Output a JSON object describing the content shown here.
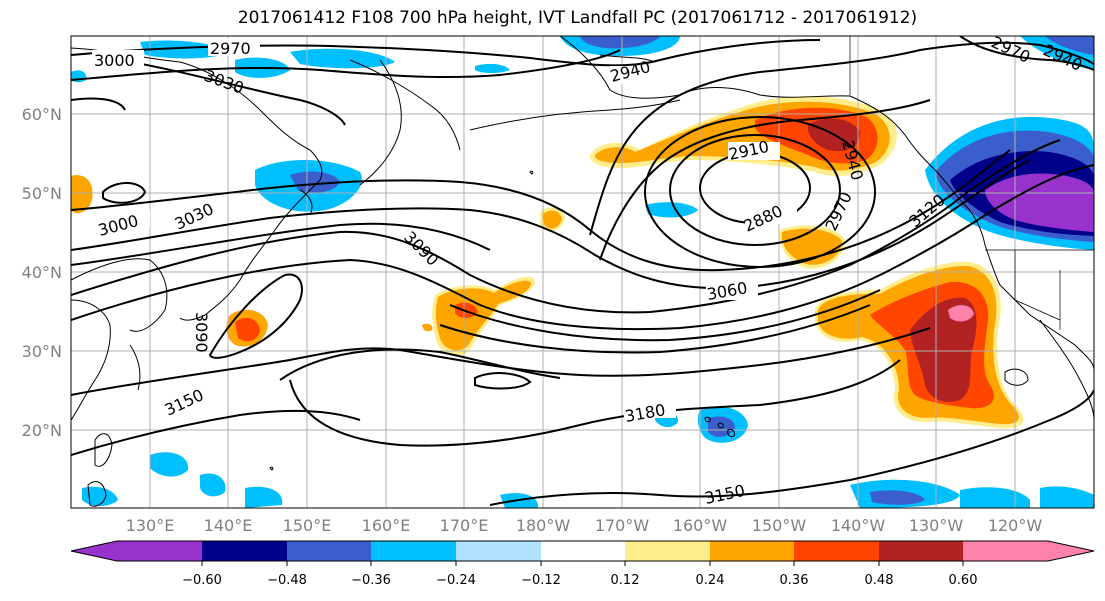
{
  "title": "2017061412 F108 700 hPa height, IVT Landfall PC (2017061712 - 2017061912)",
  "lat_labels": [
    "60°N",
    "50°N",
    "40°N",
    "30°N",
    "20°N"
  ],
  "lon_labels": [
    "130°E",
    "140°E",
    "150°E",
    "160°E",
    "170°E",
    "180°W",
    "170°W",
    "160°W",
    "150°W",
    "140°W",
    "130°W",
    "120°W"
  ],
  "contour_labels": [
    "3000",
    "2970",
    "3030",
    "2940",
    "2970",
    "2910",
    "2940",
    "2880",
    "2970",
    "3120",
    "3000",
    "3030",
    "3090",
    "3060",
    "3090",
    "3150",
    "3180",
    "3150",
    "2940"
  ],
  "colorbar": {
    "ticks": [
      "−0.60",
      "−0.48",
      "−0.36",
      "−0.24",
      "−0.12",
      "0.12",
      "0.24",
      "0.36",
      "0.48",
      "0.60"
    ],
    "colors": [
      "#9932CC",
      "#00008B",
      "#3A5FCD",
      "#00BFFF",
      "#B0E2FF",
      "#FFFFFF",
      "#FFEC8B",
      "#FFA500",
      "#FF4500",
      "#B22222",
      "#FF82AB"
    ]
  }
}
